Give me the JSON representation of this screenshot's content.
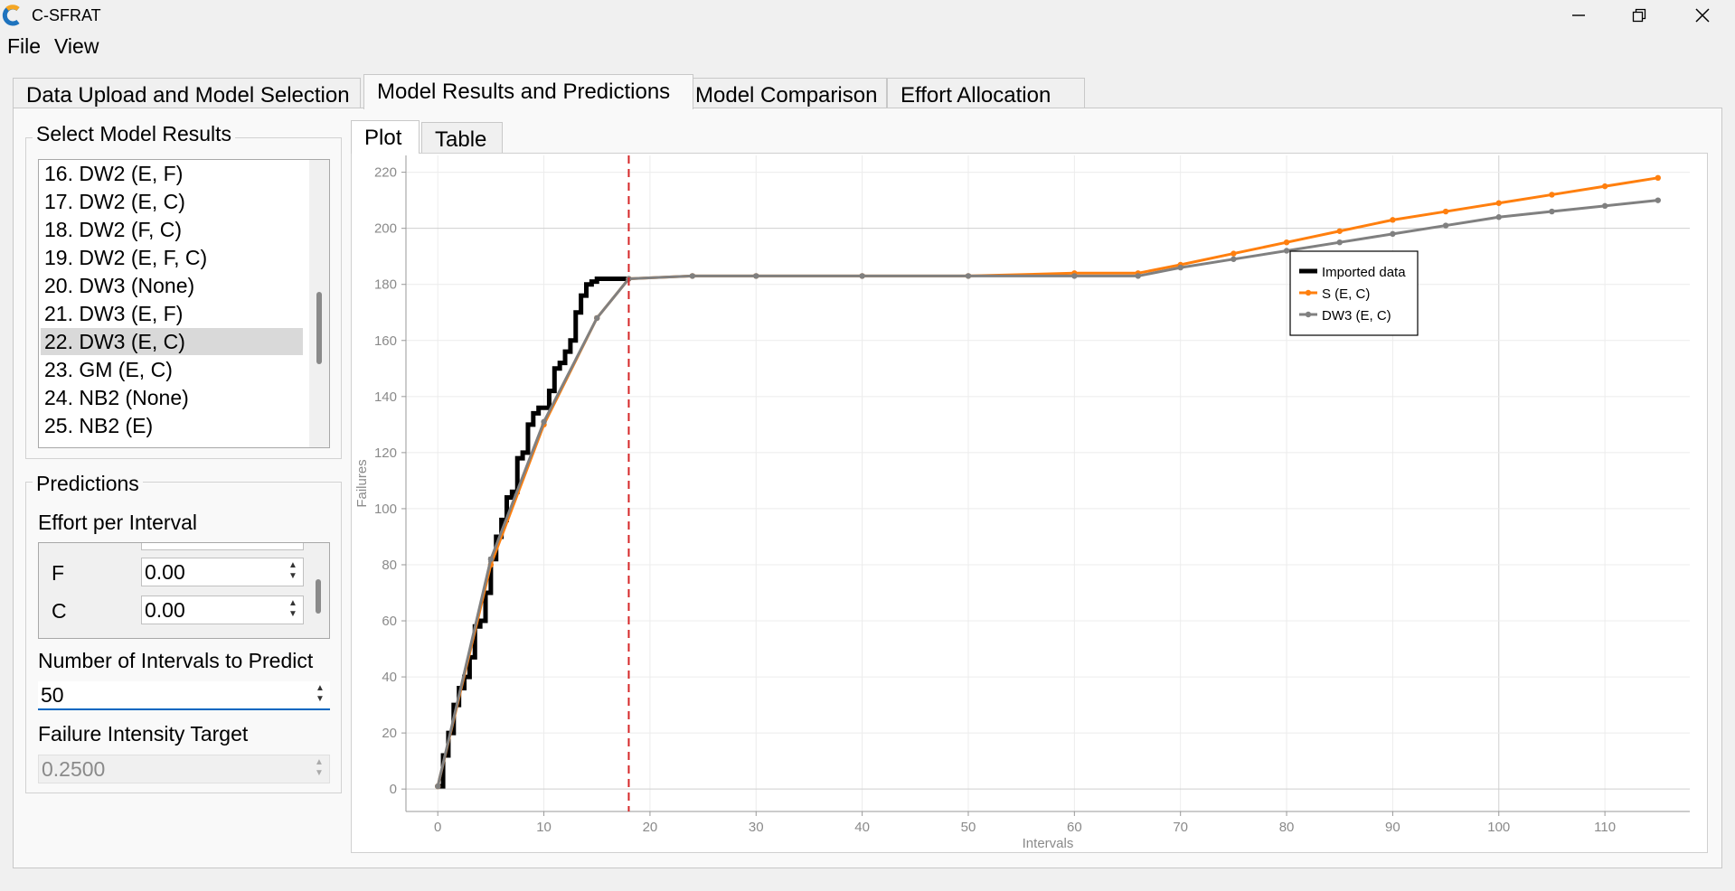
{
  "window": {
    "title": "C-SFRAT"
  },
  "menu": {
    "items": [
      "File",
      "View"
    ]
  },
  "tabs": [
    "Data Upload and Model Selection",
    "Model Results and Predictions",
    "Model Comparison",
    "Effort Allocation"
  ],
  "model_results": {
    "group_title": "Select Model Results",
    "items": [
      "16. DW2 (E, F)",
      "17. DW2 (E, C)",
      "18. DW2 (F, C)",
      "19. DW2 (E, F, C)",
      "20. DW3 (None)",
      "21. DW3 (E, F)",
      "22. DW3 (E, C)",
      "23. GM (E, C)",
      "24. NB2 (None)",
      "25. NB2 (E)"
    ],
    "selected_index": 6
  },
  "predictions": {
    "group_title": "Predictions",
    "effort_label": "Effort per Interval",
    "efforts": [
      {
        "name": "F",
        "value": "0.00"
      },
      {
        "name": "C",
        "value": "0.00"
      }
    ],
    "intervals_label": "Number of Intervals to Predict",
    "intervals_value": "50",
    "intensity_label": "Failure Intensity Target",
    "intensity_value": "0.2500"
  },
  "plot_tabs": [
    "Plot",
    "Table"
  ],
  "colors": {
    "imported": "#000000",
    "s_ec": "#ff7f0e",
    "dw3_ec": "#808080",
    "cutoff": "#d62728"
  },
  "chart_data": {
    "type": "line",
    "xlabel": "Intervals",
    "ylabel": "Failures",
    "xlim": [
      -3,
      118
    ],
    "ylim": [
      -8,
      226
    ],
    "xticks": [
      0,
      10,
      20,
      30,
      40,
      50,
      60,
      70,
      80,
      90,
      100,
      110
    ],
    "yticks": [
      0,
      20,
      40,
      60,
      80,
      100,
      120,
      140,
      160,
      180,
      200,
      220
    ],
    "grid": true,
    "legend_position": "top-right",
    "cutoff_x": 18,
    "imported": {
      "name": "Imported data",
      "x": [
        0,
        0.5,
        1,
        1.5,
        2,
        2.5,
        3,
        3.5,
        4,
        4.5,
        5,
        5.5,
        6,
        6.5,
        7,
        7.5,
        8,
        8.5,
        9,
        9.5,
        10,
        10.5,
        11,
        11.5,
        12,
        12.5,
        13,
        13.5,
        14,
        14.5,
        15,
        15.5,
        16,
        16.5,
        17,
        17.5,
        18
      ],
      "y": [
        1,
        12,
        20,
        30,
        36,
        40,
        47,
        58,
        60,
        70,
        82,
        90,
        96,
        104,
        106,
        118,
        120,
        130,
        134,
        136,
        136,
        142,
        150,
        152,
        156,
        160,
        170,
        176,
        180,
        181,
        182,
        182,
        182,
        182,
        182,
        182,
        182
      ]
    },
    "prediction_x": [
      0,
      5,
      10,
      15,
      18,
      24,
      30,
      40,
      50,
      60,
      66,
      70,
      75,
      80,
      85,
      90,
      95,
      100,
      105,
      110,
      115
    ],
    "series": [
      {
        "name": "S (E, C)",
        "values": [
          1,
          80,
          130,
          168,
          182,
          183,
          183,
          183,
          183,
          184,
          184,
          187,
          191,
          195,
          199,
          203,
          206,
          209,
          212,
          215,
          218
        ]
      },
      {
        "name": "DW3 (E, C)",
        "values": [
          1,
          82,
          131,
          168,
          182,
          183,
          183,
          183,
          183,
          183,
          183,
          186,
          189,
          192,
          195,
          198,
          201,
          204,
          206,
          208,
          210
        ]
      }
    ]
  }
}
